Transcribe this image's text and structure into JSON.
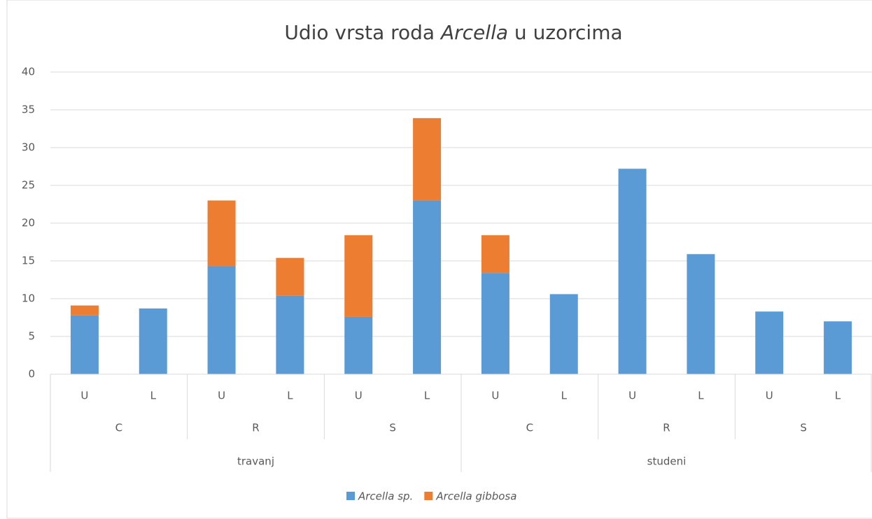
{
  "chart_data": {
    "type": "stacked_bar",
    "title": [
      "Udio vrsta roda",
      "Arcella",
      "u uzorcima"
    ],
    "categories": [
      "U",
      "L",
      "U",
      "L",
      "U",
      "L",
      "U",
      "L",
      "U",
      "L",
      "U",
      "L"
    ],
    "category_groups": [
      "C",
      "R",
      "S",
      "C",
      "R",
      "S"
    ],
    "category_supergroups": [
      "travanj",
      "studeni"
    ],
    "series": [
      {
        "name": "Arcella sp.",
        "color": "#5b9bd5",
        "values": [
          7.8,
          8.7,
          14.3,
          10.4,
          7.6,
          23.0,
          13.4,
          10.6,
          27.2,
          15.9,
          8.3,
          7.0
        ]
      },
      {
        "name": "Arcella gibbosa",
        "color": "#ed7d31",
        "values": [
          1.3,
          0,
          8.7,
          5.0,
          10.8,
          10.9,
          5.0,
          0,
          0,
          0,
          0,
          0
        ]
      }
    ],
    "ylim": [
      0,
      40
    ],
    "yticks": [
      0,
      5,
      10,
      15,
      20,
      25,
      30,
      35,
      40
    ],
    "grid": true,
    "legend": "bottom"
  }
}
